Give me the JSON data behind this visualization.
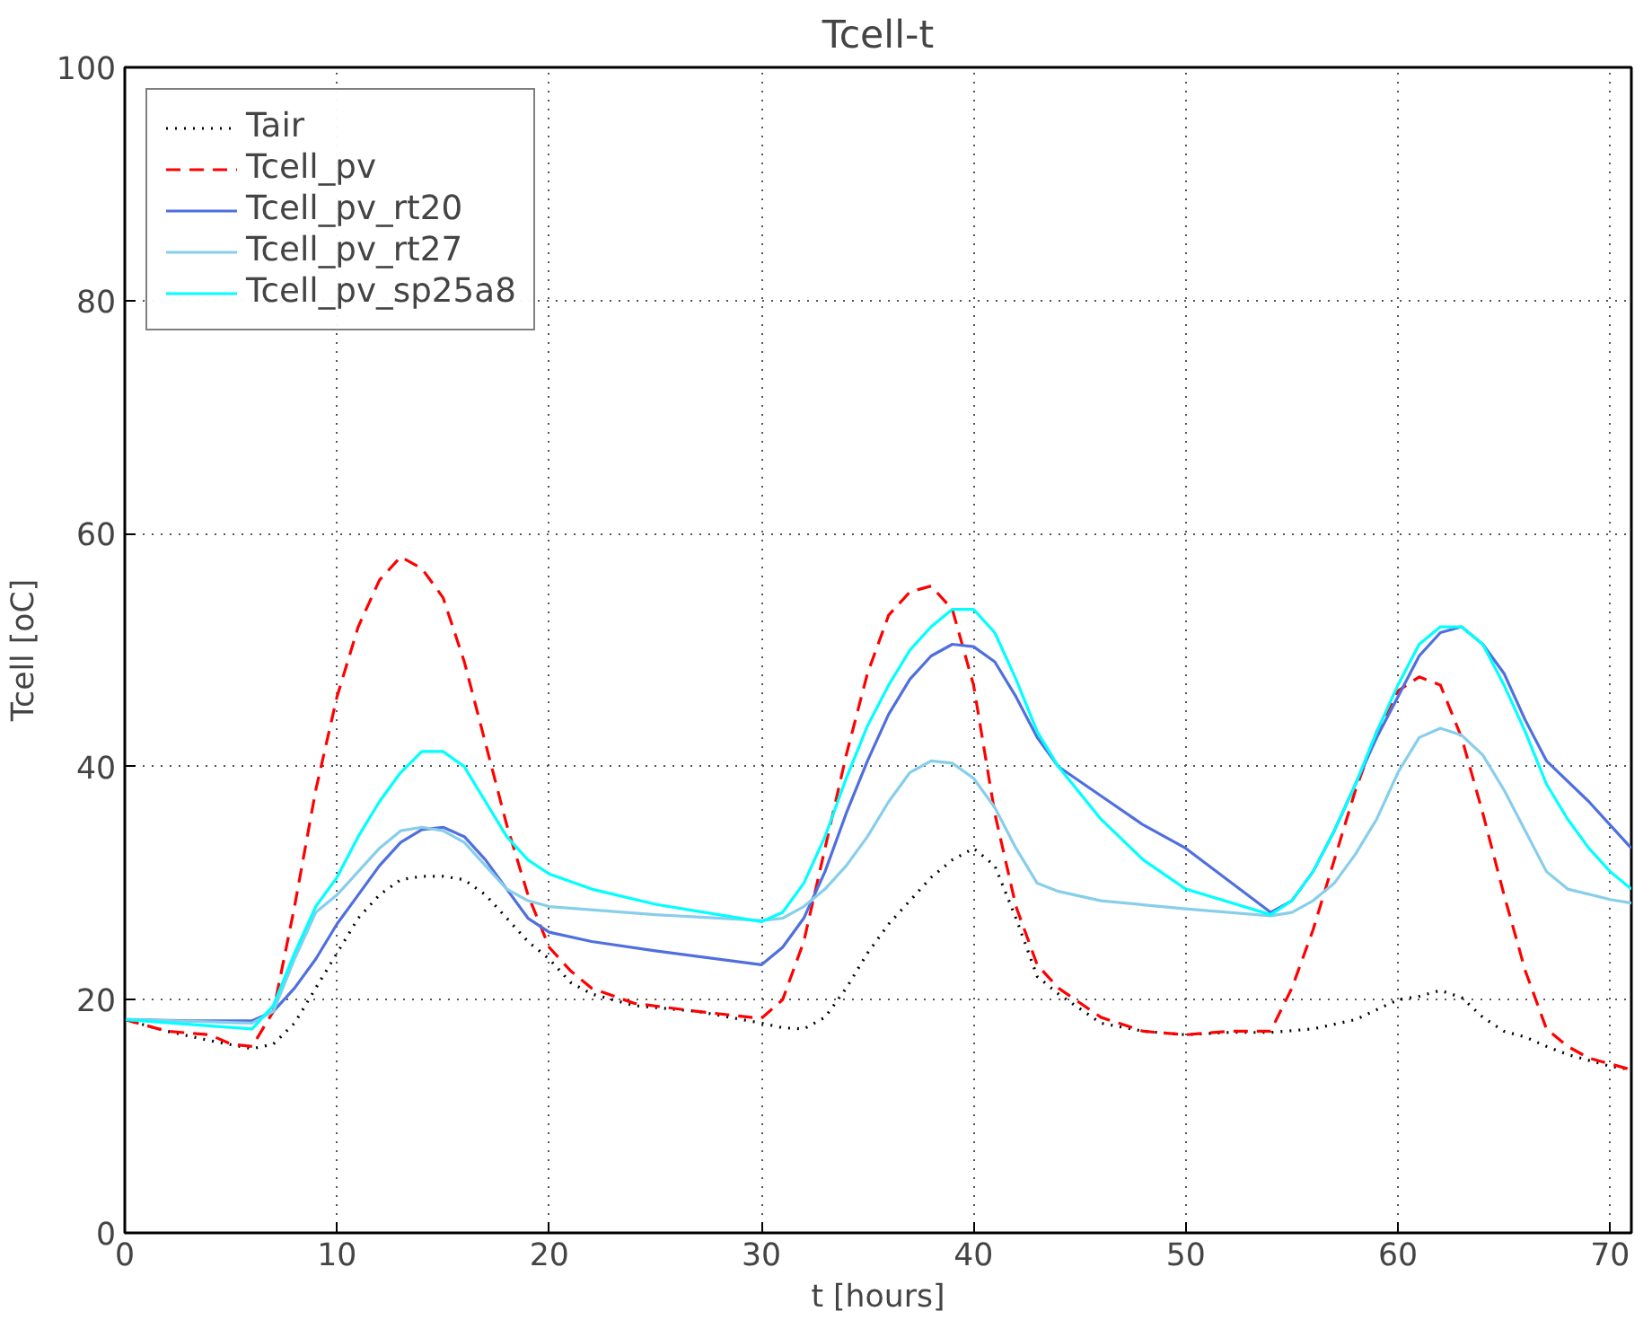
{
  "chart_data": {
    "type": "line",
    "title": "Tcell-t",
    "xlabel": "t [hours]",
    "ylabel": "Tcell [oC]",
    "xlim": [
      0,
      71
    ],
    "ylim": [
      0,
      100
    ],
    "xticks": [
      0,
      10,
      20,
      30,
      40,
      50,
      60,
      70
    ],
    "yticks": [
      0,
      20,
      40,
      60,
      80,
      100
    ],
    "grid": true,
    "legend": "top left",
    "marker": "none",
    "series": [
      {
        "name": "Tair",
        "color": "#000000",
        "line_style": "dotted",
        "x": [
          0,
          2,
          4,
          6,
          7,
          8,
          9,
          10,
          11,
          12,
          13,
          14,
          15,
          16,
          17,
          18,
          19,
          20,
          21,
          22,
          24,
          27,
          30,
          31,
          32,
          33,
          34,
          35,
          36,
          37,
          38,
          39,
          40,
          41,
          42,
          43,
          44,
          46,
          48,
          50,
          52,
          54,
          56,
          58,
          60,
          61,
          62,
          63,
          64,
          65,
          66,
          67,
          68,
          69,
          70,
          71
        ],
        "values": [
          18.3,
          17.3,
          16.5,
          15.8,
          16.2,
          18,
          21,
          24,
          27,
          29,
          30.3,
          30.6,
          30.6,
          30.3,
          29,
          27,
          25,
          23.5,
          21.5,
          20.5,
          19.5,
          19,
          18,
          17.6,
          17.5,
          18.5,
          21,
          24,
          26.5,
          28.5,
          30.5,
          32,
          33,
          31.5,
          27,
          22,
          20.5,
          18,
          17.3,
          17,
          17.2,
          17.2,
          17.5,
          18.3,
          20,
          20.3,
          20.8,
          20.2,
          18.5,
          17.3,
          16.8,
          16,
          15.3,
          14.8,
          14.3,
          14
        ]
      },
      {
        "name": "Tcell_pv",
        "color": "#ff0000",
        "line_style": "dashed",
        "x": [
          0,
          2,
          4,
          5,
          6,
          7,
          8,
          9,
          10,
          11,
          12,
          13,
          14,
          15,
          16,
          17,
          18,
          19,
          20,
          21,
          22,
          24,
          27,
          30,
          31,
          32,
          33,
          34,
          35,
          36,
          37,
          38,
          39,
          40,
          41,
          42,
          43,
          44,
          46,
          48,
          50,
          52,
          54,
          55,
          56,
          57,
          58,
          59,
          60,
          61,
          62,
          63,
          64,
          65,
          66,
          67,
          68,
          69,
          70,
          71
        ],
        "values": [
          18.3,
          17.3,
          17,
          16.2,
          16,
          19,
          28,
          38,
          46,
          52,
          56,
          58,
          57,
          54.5,
          49,
          42,
          35,
          29,
          24.5,
          22.5,
          21,
          19.7,
          19,
          18.4,
          20,
          25,
          33,
          41,
          48,
          53,
          55,
          55.5,
          53.5,
          47,
          36,
          28,
          23,
          21,
          18.5,
          17.3,
          17,
          17.3,
          17.3,
          21,
          26,
          32,
          38,
          43,
          46.5,
          47.7,
          47,
          42.5,
          36,
          29,
          22.5,
          17.5,
          16,
          15,
          14.5,
          14
        ]
      },
      {
        "name": "Tcell_pv_rt20",
        "color": "#4f6fdf",
        "line_style": "solid",
        "x": [
          0,
          3,
          6,
          7,
          8,
          9,
          10,
          11,
          12,
          13,
          14,
          15,
          16,
          17,
          18,
          19,
          20,
          22,
          25,
          30,
          31,
          32,
          33,
          34,
          35,
          36,
          37,
          38,
          39,
          40,
          41,
          42,
          43,
          44,
          46,
          48,
          50,
          54,
          55,
          56,
          57,
          58,
          59,
          60,
          61,
          62,
          63,
          64,
          65,
          66,
          67,
          69,
          71
        ],
        "values": [
          18.3,
          18.2,
          18.2,
          19,
          21,
          23.5,
          26.5,
          29,
          31.5,
          33.5,
          34.6,
          34.8,
          34,
          32,
          29.5,
          27,
          25.8,
          25,
          24.2,
          23,
          24.5,
          27,
          31,
          36,
          40.5,
          44.5,
          47.5,
          49.5,
          50.5,
          50.3,
          49,
          46,
          42.5,
          40,
          37.5,
          35,
          33,
          27.5,
          28.5,
          31,
          34.5,
          38.5,
          42.5,
          46,
          49.5,
          51.5,
          52,
          50.5,
          48,
          44,
          40.5,
          37,
          33
        ]
      },
      {
        "name": "Tcell_pv_rt27",
        "color": "#87ceeb",
        "line_style": "solid",
        "x": [
          0,
          6,
          7,
          8,
          9,
          10,
          11,
          12,
          13,
          14,
          15,
          16,
          17,
          18,
          19,
          20,
          25,
          30,
          31,
          32,
          33,
          34,
          35,
          36,
          37,
          38,
          39,
          40,
          41,
          42,
          43,
          44,
          46,
          50,
          54,
          55,
          56,
          57,
          58,
          59,
          60,
          61,
          62,
          63,
          64,
          65,
          66,
          67,
          68,
          70,
          71
        ],
        "values": [
          18.3,
          18,
          19,
          23.5,
          27.5,
          29,
          31,
          33,
          34.5,
          34.8,
          34.5,
          33.5,
          31.5,
          29.5,
          28.5,
          28,
          27.3,
          26.8,
          27,
          28,
          29.5,
          31.5,
          34,
          37,
          39.5,
          40.5,
          40.3,
          39,
          36.5,
          33,
          30,
          29.3,
          28.5,
          27.8,
          27.2,
          27.5,
          28.5,
          30,
          32.5,
          35.5,
          39.5,
          42.5,
          43.3,
          42.7,
          41,
          38,
          34.5,
          31,
          29.5,
          28.6,
          28.3
        ]
      },
      {
        "name": "Tcell_pv_sp25a8",
        "color": "#00ffff",
        "line_style": "solid",
        "x": [
          0,
          6,
          7,
          8,
          9,
          10,
          11,
          12,
          13,
          14,
          15,
          16,
          17,
          18,
          19,
          20,
          22,
          25,
          30,
          31,
          32,
          33,
          34,
          35,
          36,
          37,
          38,
          39,
          40,
          41,
          42,
          43,
          44,
          46,
          48,
          50,
          54,
          55,
          56,
          57,
          58,
          59,
          60,
          61,
          62,
          63,
          64,
          65,
          66,
          67,
          68,
          69,
          70,
          71
        ],
        "values": [
          18.3,
          17.5,
          19.5,
          24,
          28,
          30.5,
          34,
          37,
          39.5,
          41.3,
          41.3,
          40,
          37,
          34,
          32,
          30.8,
          29.5,
          28.2,
          26.7,
          27.5,
          30,
          34,
          39,
          43.5,
          47,
          50,
          52,
          53.5,
          53.5,
          51.5,
          47.5,
          43,
          40,
          35.5,
          32,
          29.5,
          27.3,
          28.5,
          31,
          34.5,
          38.5,
          43,
          47,
          50.5,
          52,
          52,
          50.5,
          47,
          43,
          38.5,
          35.5,
          33,
          31,
          29.5
        ]
      }
    ]
  }
}
